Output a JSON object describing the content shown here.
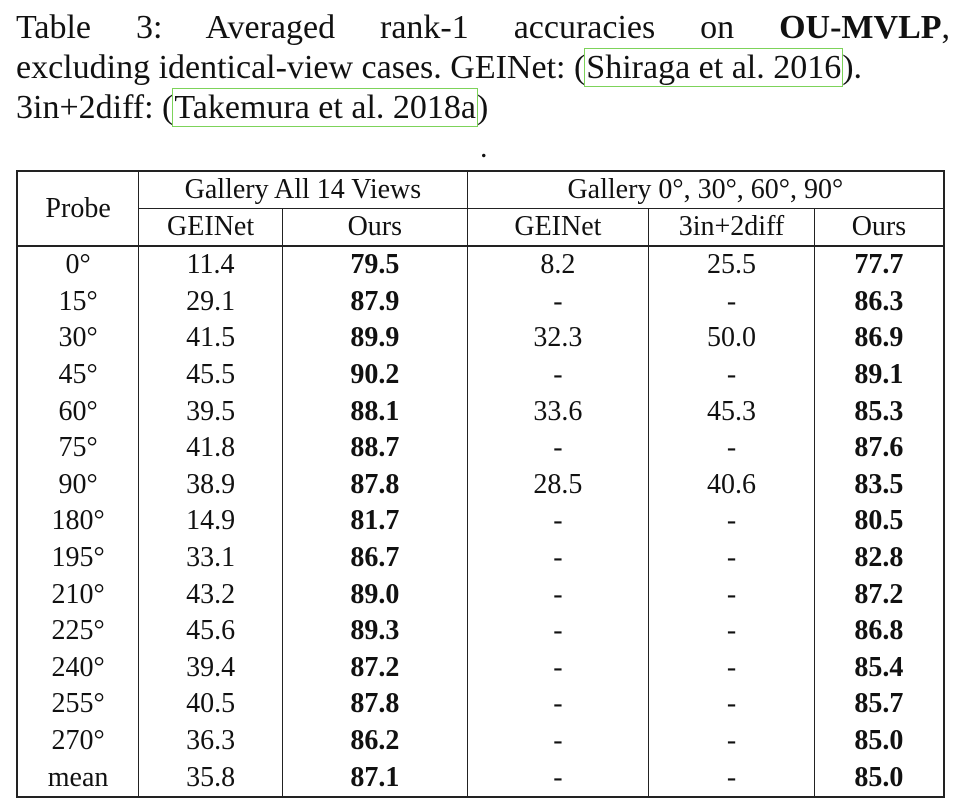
{
  "caption": {
    "table_label": "Table 3:",
    "line1_rest": "Averaged rank-1 accuracies on",
    "dataset": "OU-MVLP",
    "line1_end": ",",
    "line2_pre": "excluding identical-view cases. GEINet: (",
    "cite1": "Shiraga et al. 2016",
    "line2_post": ").",
    "line3_pre": "3in+2diff: (",
    "cite2": "Takemura et al. 2018a",
    "line3_post": ")"
  },
  "stray_dot": ".",
  "table": {
    "probe_header": "Probe",
    "group1_header": "Gallery All 14 Views",
    "group2_header": "Gallery 0°, 30°, 60°, 90°",
    "subheaders": [
      "GEINet",
      "Ours",
      "GEINet",
      "3in+2diff",
      "Ours"
    ],
    "rows": [
      {
        "probe": "0°",
        "g_geinet": "11.4",
        "g_ours": "79.5",
        "f_geinet": "8.2",
        "f_3in2diff": "25.5",
        "f_ours": "77.7"
      },
      {
        "probe": "15°",
        "g_geinet": "29.1",
        "g_ours": "87.9",
        "f_geinet": "-",
        "f_3in2diff": "-",
        "f_ours": "86.3"
      },
      {
        "probe": "30°",
        "g_geinet": "41.5",
        "g_ours": "89.9",
        "f_geinet": "32.3",
        "f_3in2diff": "50.0",
        "f_ours": "86.9"
      },
      {
        "probe": "45°",
        "g_geinet": "45.5",
        "g_ours": "90.2",
        "f_geinet": "-",
        "f_3in2diff": "-",
        "f_ours": "89.1"
      },
      {
        "probe": "60°",
        "g_geinet": "39.5",
        "g_ours": "88.1",
        "f_geinet": "33.6",
        "f_3in2diff": "45.3",
        "f_ours": "85.3"
      },
      {
        "probe": "75°",
        "g_geinet": "41.8",
        "g_ours": "88.7",
        "f_geinet": "-",
        "f_3in2diff": "-",
        "f_ours": "87.6"
      },
      {
        "probe": "90°",
        "g_geinet": "38.9",
        "g_ours": "87.8",
        "f_geinet": "28.5",
        "f_3in2diff": "40.6",
        "f_ours": "83.5"
      },
      {
        "probe": "180°",
        "g_geinet": "14.9",
        "g_ours": "81.7",
        "f_geinet": "-",
        "f_3in2diff": "-",
        "f_ours": "80.5"
      },
      {
        "probe": "195°",
        "g_geinet": "33.1",
        "g_ours": "86.7",
        "f_geinet": "-",
        "f_3in2diff": "-",
        "f_ours": "82.8"
      },
      {
        "probe": "210°",
        "g_geinet": "43.2",
        "g_ours": "89.0",
        "f_geinet": "-",
        "f_3in2diff": "-",
        "f_ours": "87.2"
      },
      {
        "probe": "225°",
        "g_geinet": "45.6",
        "g_ours": "89.3",
        "f_geinet": "-",
        "f_3in2diff": "-",
        "f_ours": "86.8"
      },
      {
        "probe": "240°",
        "g_geinet": "39.4",
        "g_ours": "87.2",
        "f_geinet": "-",
        "f_3in2diff": "-",
        "f_ours": "85.4"
      },
      {
        "probe": "255°",
        "g_geinet": "40.5",
        "g_ours": "87.8",
        "f_geinet": "-",
        "f_3in2diff": "-",
        "f_ours": "85.7"
      },
      {
        "probe": "270°",
        "g_geinet": "36.3",
        "g_ours": "86.2",
        "f_geinet": "-",
        "f_3in2diff": "-",
        "f_ours": "85.0"
      },
      {
        "probe": "mean",
        "g_geinet": "35.8",
        "g_ours": "87.1",
        "f_geinet": "-",
        "f_3in2diff": "-",
        "f_ours": "85.0"
      }
    ]
  }
}
